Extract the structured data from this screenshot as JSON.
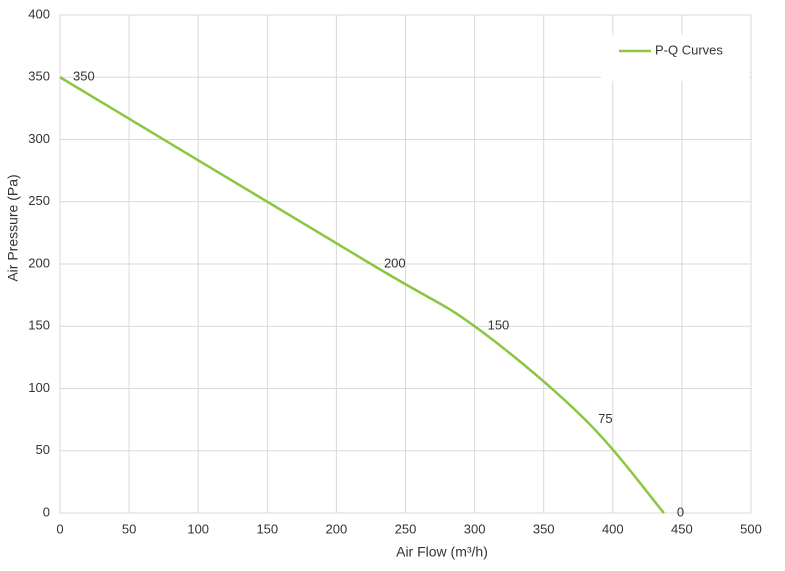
{
  "chart_data": {
    "type": "line",
    "x_label": "Air Flow  (m³/h)",
    "y_label": "Air Pressure  (Pa)",
    "x": [
      0,
      225,
      300,
      380,
      437
    ],
    "series": [
      {
        "name": "P-Q Curves",
        "color": "#8cc63f",
        "values": [
          350,
          200,
          150,
          75,
          0
        ]
      }
    ],
    "xlim": [
      0,
      500
    ],
    "xticks": [
      0,
      50,
      100,
      150,
      200,
      250,
      300,
      350,
      400,
      450,
      500
    ],
    "ylim": [
      0,
      400
    ],
    "yticks": [
      0,
      50,
      100,
      150,
      200,
      250,
      300,
      350,
      400
    ],
    "grid": true,
    "legend": "upper right",
    "smooth": true
  }
}
